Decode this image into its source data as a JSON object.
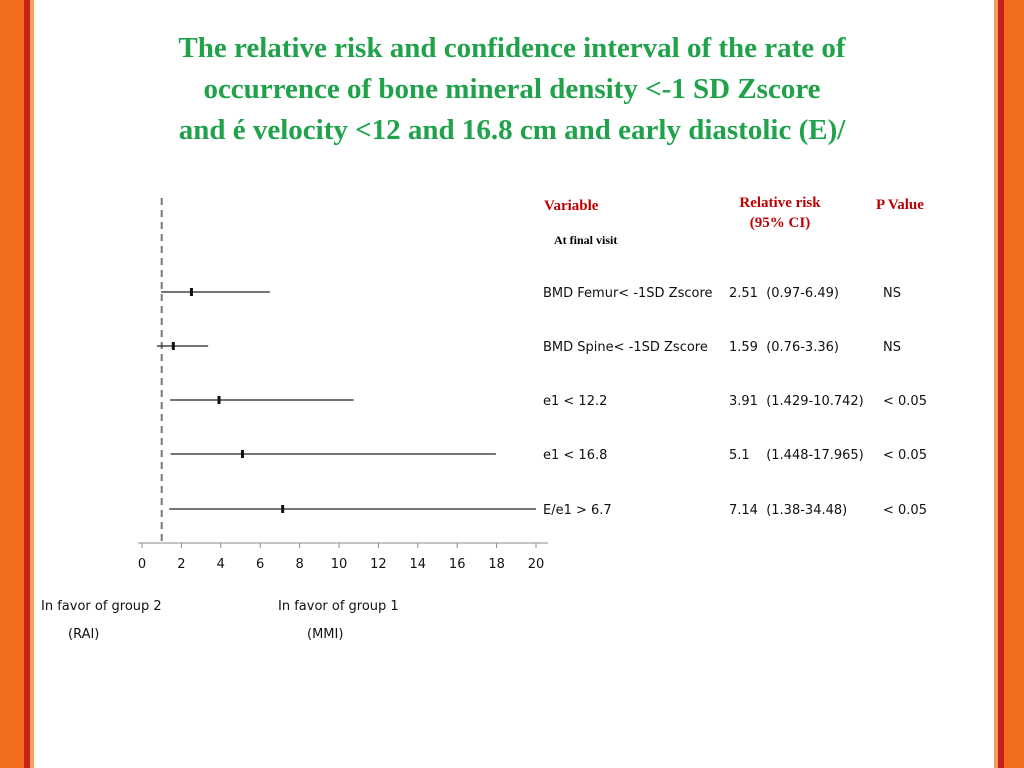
{
  "title": {
    "line1": "The relative risk and confidence interval of the rate of",
    "line2": "occurrence of bone mineral density <-1 SD Zscore",
    "line3": "and é velocity <12 and 16.8 cm and early diastolic (E)/"
  },
  "table_header": {
    "variable": "Variable",
    "relative_risk_line1": "Relative risk",
    "relative_risk_line2": "(95% CI)",
    "p_value": "P Value",
    "subheading": "At final visit"
  },
  "favor": {
    "left_line1": "In favor of group 2",
    "left_line2": "(RAI)",
    "right_line1": "In favor of group 1",
    "right_line2": "(MMI)"
  },
  "colors": {
    "title": "#1fa24a",
    "header": "#c00000",
    "border_orange": "#f36d21",
    "border_red": "#c8201a"
  },
  "chart_data": {
    "type": "forest",
    "x_ticks": [
      0,
      2,
      4,
      6,
      8,
      10,
      12,
      14,
      16,
      18,
      20
    ],
    "xlim": [
      0,
      20
    ],
    "reference_line": 1,
    "rows": [
      {
        "variable": "BMD Femur< -1SD Zscore",
        "rr": 2.51,
        "lower": 0.97,
        "upper": 6.49,
        "rr_text": "2.51  (0.97-6.49)",
        "p": "NS"
      },
      {
        "variable": "BMD Spine< -1SD Zscore",
        "rr": 1.59,
        "lower": 0.76,
        "upper": 3.36,
        "rr_text": "1.59  (0.76-3.36)",
        "p": "NS"
      },
      {
        "variable": "e1 < 12.2",
        "rr": 3.91,
        "lower": 1.429,
        "upper": 10.742,
        "rr_text": "3.91  (1.429-10.742)",
        "p": "< 0.05"
      },
      {
        "variable": "e1 < 16.8",
        "rr": 5.1,
        "lower": 1.448,
        "upper": 17.965,
        "rr_text": "5.1    (1.448-17.965)",
        "p": "< 0.05"
      },
      {
        "variable": "E/e1 > 6.7",
        "rr": 7.14,
        "lower": 1.38,
        "upper": 34.48,
        "rr_text": "7.14  (1.38-34.48)",
        "p": "< 0.05"
      }
    ]
  }
}
